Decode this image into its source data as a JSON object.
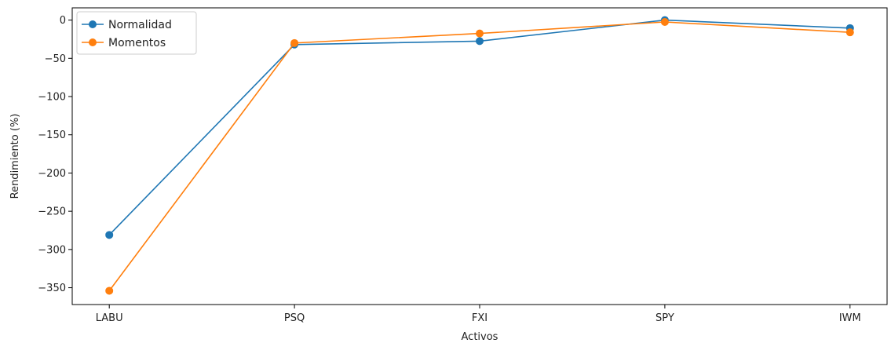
{
  "chart_data": {
    "type": "line",
    "title": "",
    "xlabel": "Activos",
    "ylabel": "Rendimiento (%)",
    "categories": [
      "LABU",
      "PSQ",
      "FXI",
      "SPY",
      "IWM"
    ],
    "ylim": [
      -372,
      16
    ],
    "yticks": [
      0,
      -50,
      -100,
      -150,
      -200,
      -250,
      -300,
      -350
    ],
    "ytick_labels": [
      "0",
      "−50",
      "−100",
      "−150",
      "−200",
      "−250",
      "−300",
      "−350"
    ],
    "grid": false,
    "legend_position": "top-left",
    "series": [
      {
        "name": "Normalidad",
        "color": "#1f77b4",
        "values": [
          -281,
          -32,
          -27.5,
          0,
          -10.5
        ]
      },
      {
        "name": "Momentos",
        "color": "#ff7f0e",
        "values": [
          -354,
          -30,
          -17.5,
          -2.5,
          -16
        ]
      }
    ]
  }
}
